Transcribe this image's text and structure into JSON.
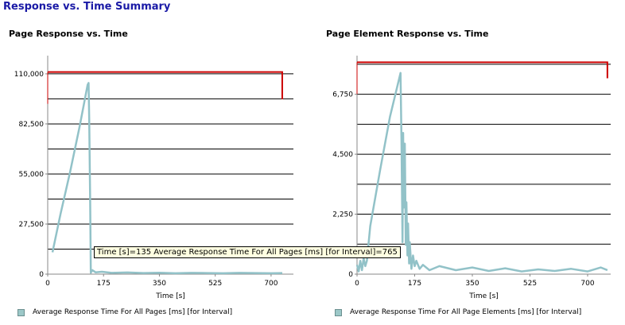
{
  "page": {
    "title": "Response vs. Time Summary"
  },
  "tooltip": {
    "text": "Time [s]=135 Average Response Time For All Pages [ms] [for Interval]=765"
  },
  "chart_data": [
    {
      "type": "line",
      "title": "Page Response vs. Time",
      "xlabel": "Time [s]",
      "ylabel": "",
      "xlim": [
        0,
        770
      ],
      "ylim": [
        0,
        120000
      ],
      "x_ticks": [
        0,
        175,
        350,
        525,
        700
      ],
      "y_ticks": [
        0,
        27500,
        55000,
        82500,
        110000
      ],
      "y_tick_labels": [
        "0",
        "27,500",
        "55,000",
        "82,500",
        "110,000"
      ],
      "grid": true,
      "legend": "bottom-left",
      "threshold": {
        "x": [
          0,
          735
        ],
        "y": 111000,
        "end_y": 96000,
        "color": "#cc0000"
      },
      "series": [
        {
          "name": "Average Response Time For All Pages [ms] [for Interval]",
          "color": "#92c2c8",
          "x": [
            15,
            40,
            70,
            100,
            125,
            128,
            130,
            133,
            135,
            140,
            150,
            170,
            200,
            250,
            300,
            350,
            400,
            450,
            500,
            550,
            600,
            650,
            700,
            735
          ],
          "y": [
            12000,
            33000,
            56000,
            81000,
            104000,
            105000,
            85000,
            40000,
            765,
            2200,
            1000,
            1300,
            700,
            900,
            600,
            800,
            500,
            700,
            600,
            500,
            700,
            600,
            500,
            600
          ]
        }
      ]
    },
    {
      "type": "line",
      "title": "Page Element Response vs. Time",
      "xlabel": "Time [s]",
      "ylabel": "",
      "xlim": [
        0,
        770
      ],
      "ylim": [
        0,
        8200
      ],
      "x_ticks": [
        0,
        175,
        350,
        525,
        700
      ],
      "y_ticks": [
        0,
        2250,
        4500,
        6750
      ],
      "y_tick_labels": [
        "0",
        "2,250",
        "4,500",
        "6,750"
      ],
      "grid": true,
      "legend": "bottom-left",
      "threshold": {
        "x": [
          0,
          760
        ],
        "y": 7950,
        "end_y": 7350,
        "color": "#cc0000"
      },
      "series": [
        {
          "name": "Average Response Time For All Page Elements [ms] [for Interval]",
          "color": "#92c2c8",
          "x": [
            0,
            5,
            10,
            15,
            20,
            25,
            30,
            40,
            70,
            100,
            130,
            132,
            135,
            138,
            140,
            142,
            145,
            148,
            150,
            153,
            155,
            158,
            160,
            165,
            170,
            175,
            180,
            190,
            200,
            220,
            250,
            300,
            350,
            400,
            450,
            500,
            550,
            600,
            650,
            700,
            740,
            760
          ],
          "y": [
            350,
            100,
            500,
            150,
            600,
            300,
            500,
            1800,
            3900,
            5900,
            7450,
            7550,
            5000,
            1200,
            5300,
            2500,
            4900,
            1100,
            2700,
            700,
            1900,
            400,
            1200,
            200,
            700,
            300,
            500,
            200,
            350,
            150,
            300,
            150,
            250,
            120,
            220,
            100,
            180,
            120,
            200,
            100,
            250,
            150
          ]
        }
      ]
    }
  ]
}
